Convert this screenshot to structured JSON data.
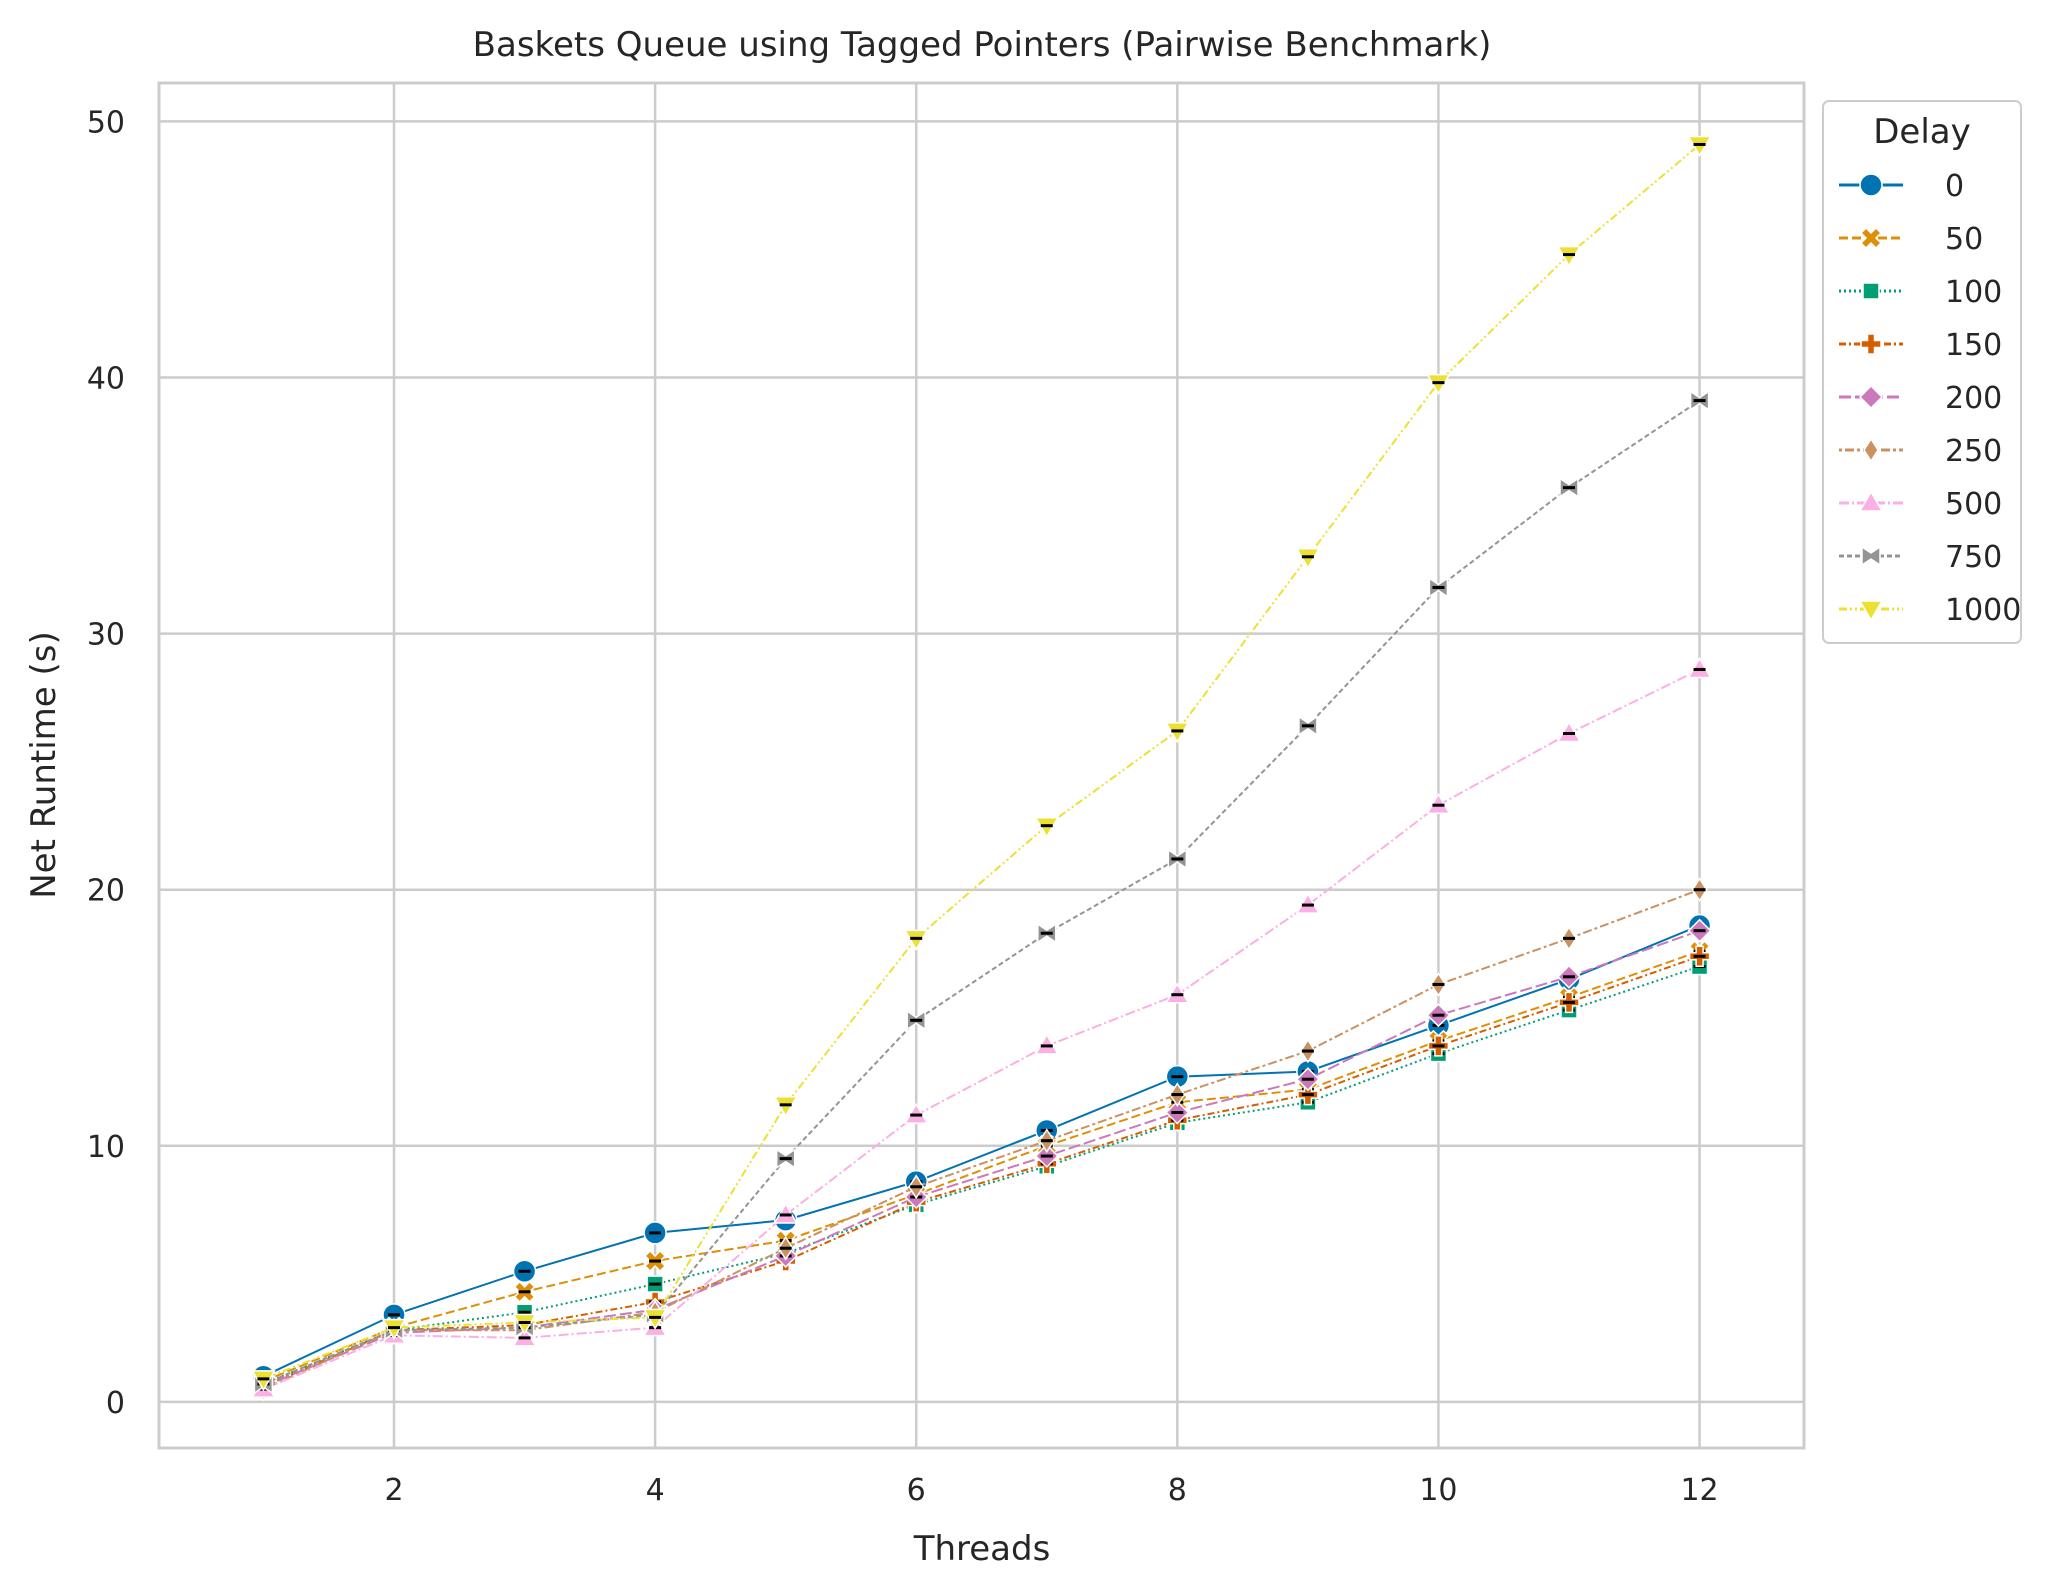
{
  "chart_data": {
    "type": "line",
    "title": "Baskets Queue using Tagged Pointers (Pairwise Benchmark)",
    "xlabel": "Threads",
    "ylabel": "Net Runtime (s)",
    "xlim": [
      0.2,
      12.8
    ],
    "ylim": [
      -1.8,
      51.5
    ],
    "x_ticks": [
      2,
      4,
      6,
      8,
      10,
      12
    ],
    "y_ticks": [
      0,
      10,
      20,
      30,
      40,
      50
    ],
    "x_tick_labels": [
      "2",
      "4",
      "6",
      "8",
      "10",
      "12"
    ],
    "y_tick_labels": [
      "0",
      "10",
      "20",
      "30",
      "40",
      "50"
    ],
    "grid": true,
    "error_bars": true,
    "legend": {
      "title": "Delay",
      "placement": "outside upper right"
    },
    "x": [
      1,
      2,
      3,
      4,
      5,
      6,
      7,
      8,
      9,
      10,
      11,
      12
    ],
    "series": [
      {
        "name": "0",
        "color": "#0173b2",
        "marker": "circle",
        "dash": "solid",
        "values": [
          1.0,
          3.4,
          5.1,
          6.6,
          7.1,
          8.6,
          10.6,
          12.7,
          12.9,
          14.7,
          16.5,
          18.6
        ]
      },
      {
        "name": "50",
        "color": "#de8f05",
        "marker": "x-filled",
        "dash": "dashed",
        "values": [
          0.8,
          2.9,
          4.3,
          5.5,
          6.3,
          8.1,
          10.0,
          11.7,
          12.2,
          14.1,
          15.8,
          17.6
        ]
      },
      {
        "name": "100",
        "color": "#029e73",
        "marker": "square",
        "dash": "dotted",
        "values": [
          0.7,
          2.8,
          3.5,
          4.6,
          5.8,
          7.7,
          9.2,
          10.9,
          11.7,
          13.6,
          15.3,
          17.0
        ]
      },
      {
        "name": "150",
        "color": "#d55e00",
        "marker": "plus-filled",
        "dash": "dashdot",
        "values": [
          0.6,
          2.8,
          3.0,
          3.9,
          5.5,
          7.8,
          9.3,
          11.0,
          12.0,
          13.9,
          15.6,
          17.4
        ]
      },
      {
        "name": "200",
        "color": "#cc78bc",
        "marker": "diamond",
        "dash": "longdash",
        "values": [
          0.6,
          2.7,
          2.9,
          3.6,
          5.7,
          8.0,
          9.6,
          11.3,
          12.6,
          15.1,
          16.6,
          18.4
        ]
      },
      {
        "name": "250",
        "color": "#ca9161",
        "marker": "thin-diamond",
        "dash": "dotdash",
        "values": [
          0.5,
          2.8,
          2.8,
          3.5,
          6.0,
          8.4,
          10.2,
          12.0,
          13.7,
          16.3,
          18.1,
          20.0
        ]
      },
      {
        "name": "500",
        "color": "#fbafe4",
        "marker": "triangle-up",
        "dash": "dashdot2",
        "values": [
          0.5,
          2.6,
          2.5,
          2.9,
          7.3,
          11.2,
          13.9,
          15.9,
          19.4,
          23.3,
          26.1,
          28.6
        ]
      },
      {
        "name": "750",
        "color": "#949494",
        "marker": "bowtie",
        "dash": "dashed2",
        "values": [
          0.7,
          2.8,
          2.9,
          3.4,
          9.5,
          14.9,
          18.3,
          21.2,
          26.4,
          31.8,
          35.7,
          39.1
        ]
      },
      {
        "name": "1000",
        "color": "#ece133",
        "marker": "triangle-down",
        "dash": "dashdot3",
        "values": [
          0.9,
          2.9,
          3.1,
          3.3,
          11.6,
          18.1,
          22.5,
          26.2,
          33.0,
          39.8,
          44.8,
          49.1
        ]
      }
    ]
  }
}
